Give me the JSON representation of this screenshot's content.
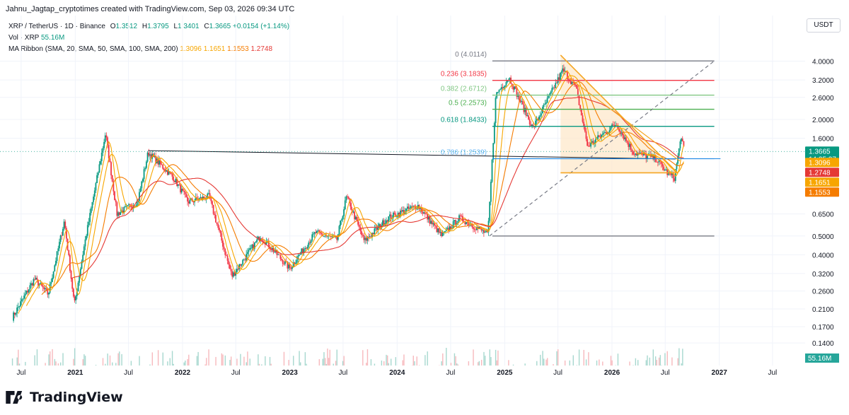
{
  "header": {
    "attribution": "Jahnu_Jagtap_cryptotimes created with TradingView.com, Sep 03, 2026 09:34 UTC"
  },
  "legend": {
    "symbol": "XRP / TetherUS · 1D · Binance",
    "o_label": "O",
    "o_value": "1.3512",
    "h_label": "H",
    "h_value": "1.3795",
    "l_label": "L",
    "l_value": "1.3401",
    "c_label": "C",
    "c_value": "1.3665",
    "change": "+0.0154 (+1.14%)",
    "vol_label": "Vol · XRP",
    "vol_value": "55.16M",
    "ma_label": "MA Ribbon (SMA, 20, SMA, 50, SMA, 100, SMA, 200)",
    "ma_values": [
      "1.3096",
      "1.1651",
      "1.1553",
      "1.2748"
    ]
  },
  "currency": "USDT",
  "footer": {
    "brand": "TradingView"
  },
  "colors": {
    "up": "#089981",
    "down": "#f23645",
    "ma20": "#f7a600",
    "ma50": "#f7a600",
    "ma100": "#f57c00",
    "ma200": "#e53935",
    "pattern": "#f5a623"
  },
  "chart_data": {
    "type": "candlestick",
    "y_scale": "log",
    "ylim": [
      0.13,
      5.0
    ],
    "y_ticks": [
      "4.0000",
      "3.2000",
      "2.6000",
      "2.0000",
      "1.6000",
      "0.6500",
      "0.5000",
      "0.4000",
      "0.3200",
      "0.2600",
      "0.2100",
      "0.1700",
      "0.1400"
    ],
    "x_ticks": [
      "Jul",
      "2021",
      "Jul",
      "2022",
      "Jul",
      "2023",
      "Jul",
      "2024",
      "Jul",
      "2025",
      "Jul",
      "2026",
      "Jul",
      "2027",
      "Jul"
    ],
    "price_tags": [
      {
        "value": "1.3665",
        "sub": "14:25:27",
        "color": "#089981"
      },
      {
        "value": "1.3096",
        "color": "#f7a600"
      },
      {
        "value": "1.2748",
        "color": "#e53935"
      },
      {
        "value": "1.1651",
        "color": "#f7a600"
      },
      {
        "value": "1.1553",
        "color": "#f57c00"
      }
    ],
    "volume_tag": {
      "value": "55.16M",
      "color": "#26a69a"
    },
    "fib_levels": [
      {
        "label": "0 (4.0114)",
        "price": 4.0114,
        "color": "#787b86"
      },
      {
        "label": "0.236 (3.1835)",
        "price": 3.1835,
        "color": "#f23645"
      },
      {
        "label": "0.382 (2.6712)",
        "price": 2.6712,
        "color": "#81c784"
      },
      {
        "label": "0.5 (2.2573)",
        "price": 2.2573,
        "color": "#4caf50"
      },
      {
        "label": "0.618 (1.8433)",
        "price": 1.8433,
        "color": "#089981"
      },
      {
        "label": "0.786 (1.2539)",
        "price": 1.2539,
        "color": "#64b5f6"
      },
      {
        "label": "",
        "price": 0.5,
        "color": "#787b86"
      }
    ],
    "price_path": [
      [
        "2020-06-01",
        0.19
      ],
      [
        "2020-08-15",
        0.3
      ],
      [
        "2020-10-01",
        0.25
      ],
      [
        "2020-11-25",
        0.6
      ],
      [
        "2020-12-29",
        0.22
      ],
      [
        "2021-02-01",
        0.45
      ],
      [
        "2021-04-14",
        1.7
      ],
      [
        "2021-05-23",
        0.65
      ],
      [
        "2021-08-01",
        0.75
      ],
      [
        "2021-09-06",
        1.35
      ],
      [
        "2021-12-01",
        1.0
      ],
      [
        "2022-01-20",
        0.75
      ],
      [
        "2022-04-01",
        0.8
      ],
      [
        "2022-06-18",
        0.31
      ],
      [
        "2022-09-23",
        0.5
      ],
      [
        "2022-12-31",
        0.34
      ],
      [
        "2023-03-29",
        0.52
      ],
      [
        "2023-06-10",
        0.48
      ],
      [
        "2023-07-13",
        0.8
      ],
      [
        "2023-09-11",
        0.47
      ],
      [
        "2023-12-01",
        0.62
      ],
      [
        "2024-03-11",
        0.72
      ],
      [
        "2024-06-01",
        0.5
      ],
      [
        "2024-07-31",
        0.62
      ],
      [
        "2024-11-05",
        0.51
      ],
      [
        "2024-12-02",
        2.7
      ],
      [
        "2025-01-16",
        3.3
      ],
      [
        "2025-04-07",
        1.8
      ],
      [
        "2025-07-18",
        3.6
      ],
      [
        "2025-09-01",
        2.9
      ],
      [
        "2025-10-10",
        1.45
      ],
      [
        "2026-01-15",
        1.9
      ],
      [
        "2026-03-15",
        1.35
      ],
      [
        "2026-06-01",
        1.25
      ],
      [
        "2026-07-10",
        1.05
      ],
      [
        "2026-08-01",
        1.0
      ],
      [
        "2026-08-25",
        1.65
      ],
      [
        "2026-09-03",
        1.3665
      ]
    ]
  }
}
